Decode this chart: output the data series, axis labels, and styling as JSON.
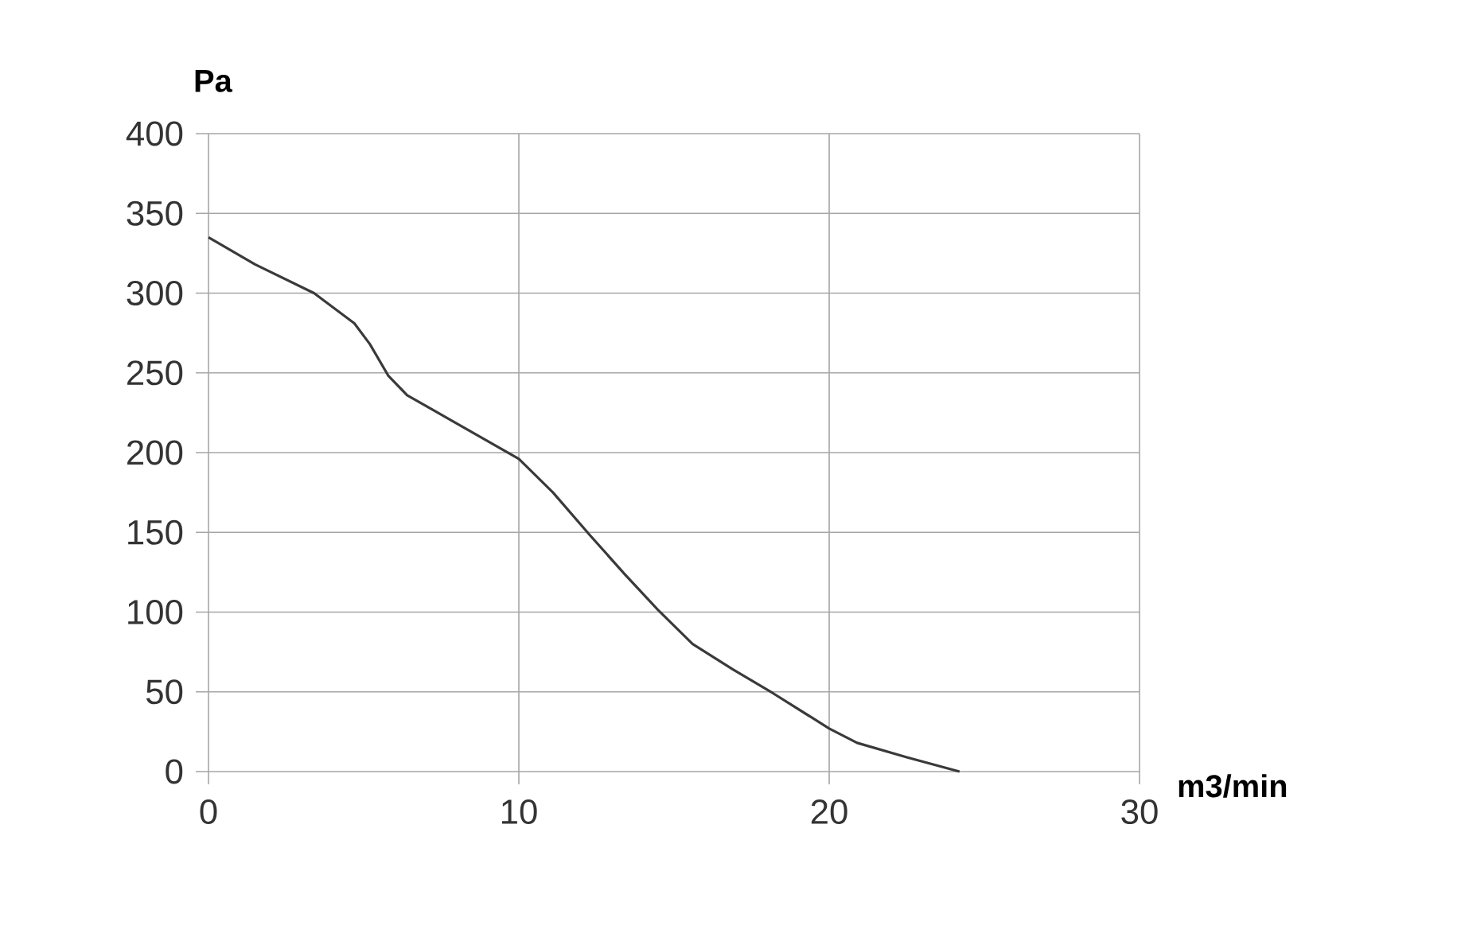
{
  "chart_data": {
    "type": "line",
    "xlabel": "m3/min",
    "ylabel": "Pa",
    "x": [
      0,
      1.5,
      3.4,
      4.7,
      5.2,
      5.8,
      6.4,
      8.2,
      10,
      11.1,
      12.3,
      13.4,
      14.5,
      15.6,
      16.9,
      18.2,
      20,
      20.9,
      22.5,
      24.2
    ],
    "values": [
      335,
      318,
      300,
      281,
      268,
      248,
      236,
      216,
      196,
      175,
      148,
      124,
      101,
      80,
      64,
      49,
      27,
      18,
      9,
      0
    ],
    "color": "#3a3a3a",
    "xlim": [
      0,
      30
    ],
    "ylim": [
      0,
      400
    ],
    "xticks": [
      0,
      10,
      20,
      30
    ],
    "yticks": [
      0,
      50,
      100,
      150,
      200,
      250,
      300,
      350,
      400
    ],
    "grid": true,
    "marker": "none",
    "line_style": "solid"
  }
}
